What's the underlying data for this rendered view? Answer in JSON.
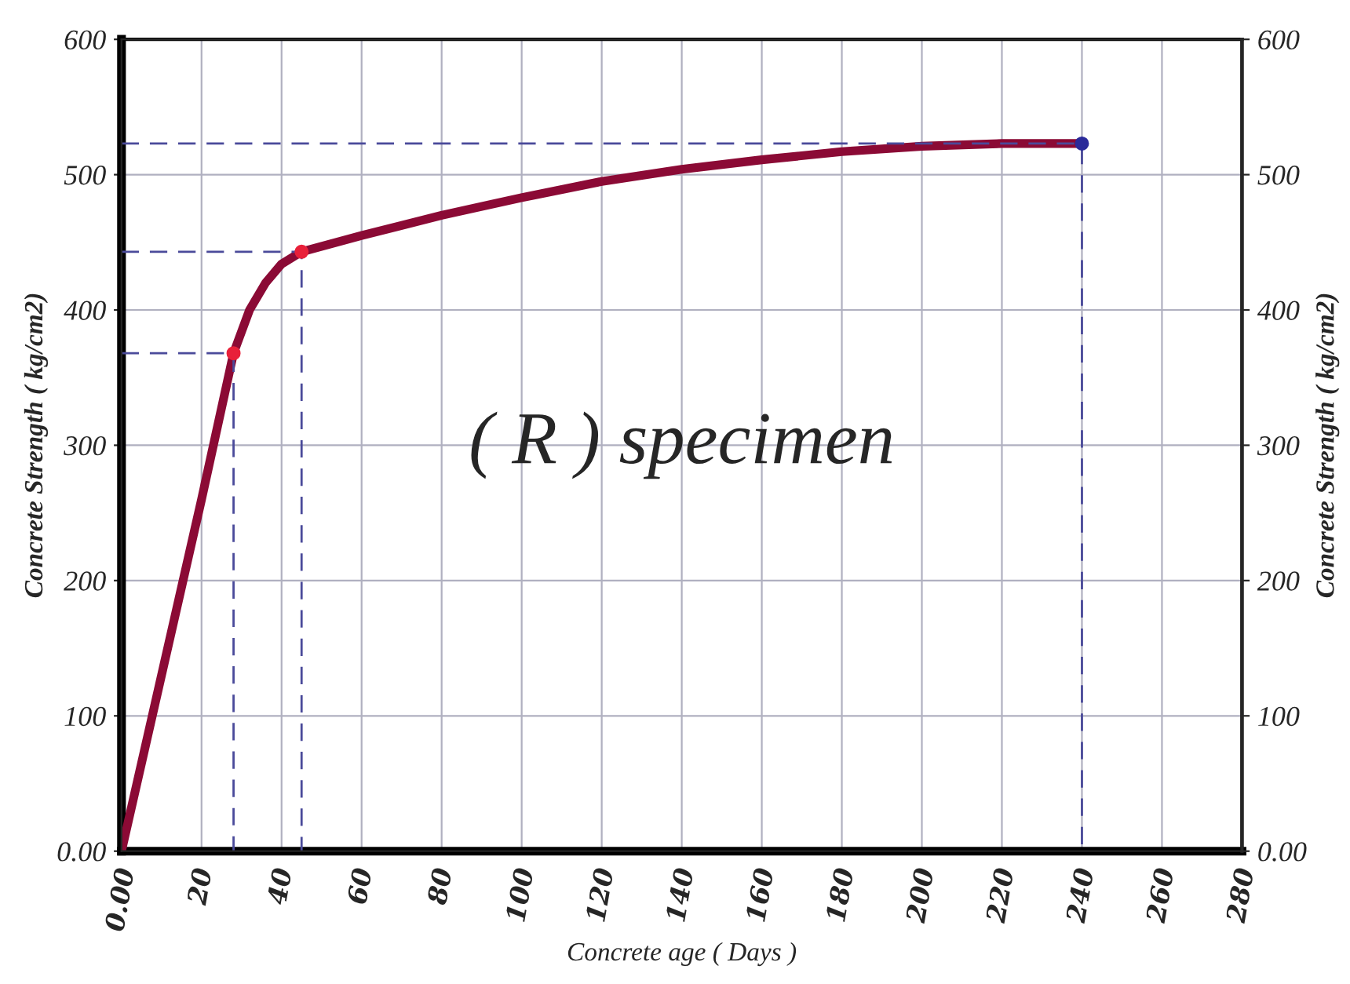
{
  "chart_data": {
    "type": "line",
    "xlabel": "Concrete age ( Days )",
    "ylabel": "Concrete Strength ( kg/cm2)",
    "y2label": "Concrete Strength ( kg/cm2)",
    "annotations": [
      "( R ) specimen"
    ],
    "xlim": [
      0,
      280
    ],
    "xticks": [
      {
        "value": 0,
        "label": "0.00"
      },
      20,
      40,
      60,
      80,
      100,
      120,
      140,
      160,
      180,
      200,
      220,
      240,
      260,
      280
    ],
    "ylim": [
      0,
      600
    ],
    "yticks": [
      {
        "value": 0,
        "label": "0.00"
      },
      100,
      200,
      300,
      400,
      500,
      600
    ],
    "y2lim": [
      0,
      600
    ],
    "y2ticks": [
      {
        "value": 0,
        "label": "0.00"
      },
      100,
      200,
      300,
      400,
      500,
      600
    ],
    "grid": true,
    "series": [
      {
        "color": "#8b0a35",
        "line_style": "solid",
        "marker": "none",
        "x": [
          0,
          10,
          20,
          28,
          32,
          36,
          40,
          45,
          60,
          80,
          100,
          120,
          140,
          160,
          180,
          200,
          220,
          240
        ],
        "values": [
          0,
          130,
          260,
          368,
          400,
          420,
          434,
          443,
          455,
          470,
          483,
          495,
          504,
          511,
          517,
          521,
          523,
          523
        ]
      },
      {
        "type": "line",
        "color": "#4a4a9a",
        "line_style": "dashed",
        "marker": "none",
        "x": [
          0,
          28,
          28
        ],
        "values": [
          368,
          368,
          0
        ]
      },
      {
        "type": "line",
        "color": "#4a4a9a",
        "line_style": "dashed",
        "marker": "none",
        "x": [
          0,
          45,
          45
        ],
        "values": [
          443,
          443,
          0
        ]
      },
      {
        "type": "line",
        "color": "#4a4a9a",
        "line_style": "dashed",
        "marker": "none",
        "x": [
          0,
          240,
          240
        ],
        "values": [
          523,
          523,
          0
        ]
      },
      {
        "type": "scatter",
        "marker": "circle",
        "colors": [
          "#e8203a",
          "#e8203a",
          "#2a2a9a"
        ],
        "x": [
          28,
          45,
          240
        ],
        "values": [
          368,
          443,
          523
        ]
      }
    ]
  }
}
